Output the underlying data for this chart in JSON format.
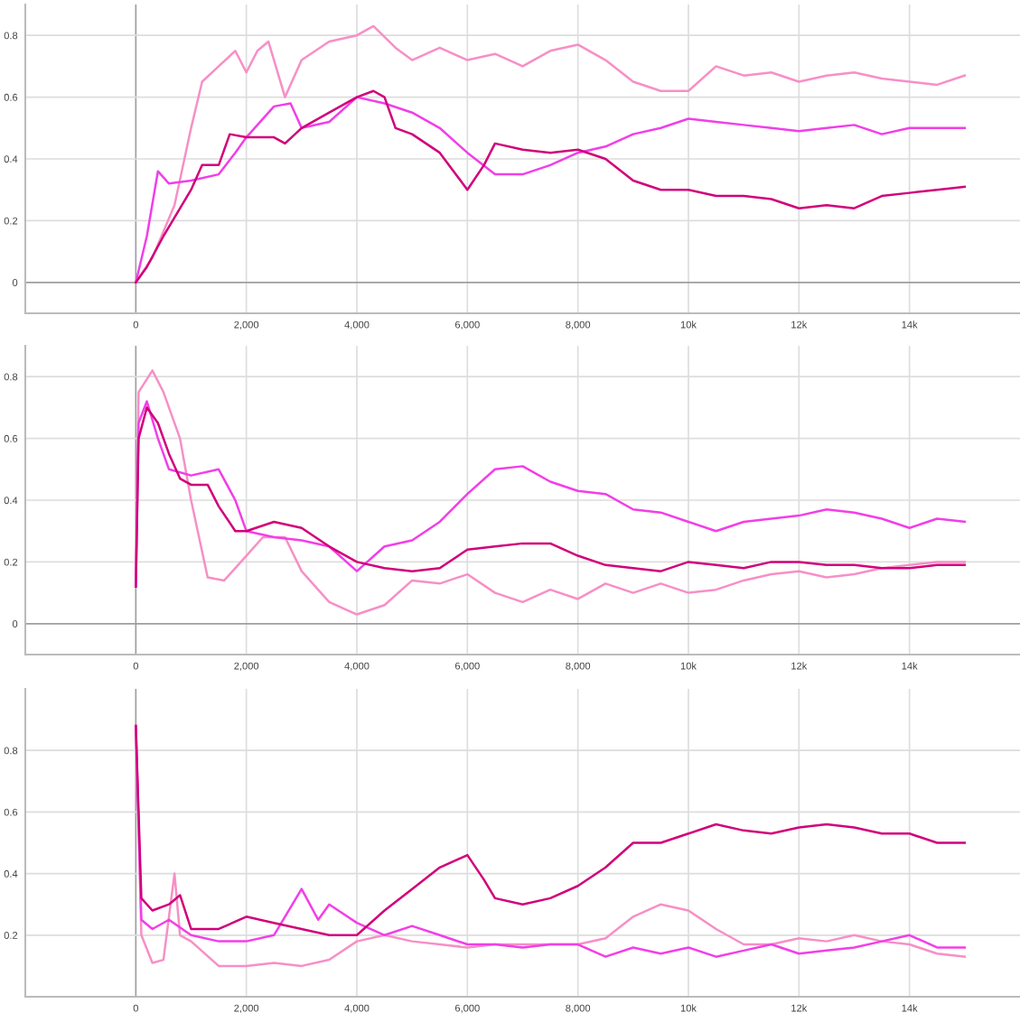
{
  "chart_data": [
    {
      "type": "line",
      "xlim": [
        -2000,
        16000
      ],
      "ylim": [
        -0.1,
        0.9
      ],
      "xticks": [
        0,
        {
          "value": 2000,
          "label": "2,000"
        },
        {
          "value": 4000,
          "label": "4,000"
        },
        {
          "value": 6000,
          "label": "6,000"
        },
        {
          "value": 8000,
          "label": "8,000"
        },
        {
          "value": 10000,
          "label": "10k"
        },
        {
          "value": 12000,
          "label": "12k"
        },
        {
          "value": 14000,
          "label": "14k"
        }
      ],
      "yticks": [
        0,
        0.2,
        0.4,
        0.6,
        0.8
      ],
      "grid": true,
      "series": [
        {
          "color": "#f78fc6",
          "x": [
            0,
            300,
            700,
            1000,
            1200,
            1500,
            1800,
            2000,
            2200,
            2400,
            2700,
            3000,
            3500,
            4000,
            4300,
            4700,
            5000,
            5500,
            6000,
            6500,
            7000,
            7500,
            8000,
            8500,
            9000,
            9500,
            10000,
            10500,
            11000,
            11500,
            12000,
            12500,
            13000,
            13500,
            14000,
            14500,
            15000
          ],
          "values": [
            0,
            0.08,
            0.25,
            0.5,
            0.65,
            0.7,
            0.75,
            0.68,
            0.75,
            0.78,
            0.6,
            0.72,
            0.78,
            0.8,
            0.83,
            0.76,
            0.72,
            0.76,
            0.72,
            0.74,
            0.7,
            0.75,
            0.77,
            0.72,
            0.65,
            0.62,
            0.62,
            0.7,
            0.67,
            0.68,
            0.65,
            0.67,
            0.68,
            0.66,
            0.65,
            0.64,
            0.67
          ]
        },
        {
          "color": "#f23ee8",
          "x": [
            0,
            200,
            400,
            600,
            1000,
            1500,
            1800,
            2000,
            2500,
            2800,
            3000,
            3500,
            4000,
            4500,
            5000,
            5500,
            6000,
            6500,
            7000,
            7500,
            8000,
            8500,
            9000,
            9500,
            10000,
            10500,
            11000,
            11500,
            12000,
            12500,
            13000,
            13500,
            14000,
            14500,
            15000
          ],
          "values": [
            0,
            0.15,
            0.36,
            0.32,
            0.33,
            0.35,
            0.42,
            0.47,
            0.57,
            0.58,
            0.5,
            0.52,
            0.6,
            0.58,
            0.55,
            0.5,
            0.42,
            0.35,
            0.35,
            0.38,
            0.42,
            0.44,
            0.48,
            0.5,
            0.53,
            0.52,
            0.51,
            0.5,
            0.49,
            0.5,
            0.51,
            0.48,
            0.5,
            0.5,
            0.5
          ]
        },
        {
          "color": "#d1007a",
          "x": [
            0,
            200,
            500,
            1000,
            1200,
            1500,
            1700,
            2000,
            2500,
            2700,
            3000,
            3500,
            4000,
            4300,
            4500,
            4700,
            5000,
            5500,
            6000,
            6300,
            6500,
            7000,
            7500,
            8000,
            8500,
            9000,
            9500,
            10000,
            10500,
            11000,
            11500,
            12000,
            12500,
            13000,
            13500,
            14000,
            14500,
            15000
          ],
          "values": [
            0,
            0.05,
            0.15,
            0.3,
            0.38,
            0.38,
            0.48,
            0.47,
            0.47,
            0.45,
            0.5,
            0.55,
            0.6,
            0.62,
            0.6,
            0.5,
            0.48,
            0.42,
            0.3,
            0.38,
            0.45,
            0.43,
            0.42,
            0.43,
            0.4,
            0.33,
            0.3,
            0.3,
            0.28,
            0.28,
            0.27,
            0.24,
            0.25,
            0.24,
            0.28,
            0.29,
            0.3,
            0.31
          ]
        }
      ]
    },
    {
      "type": "line",
      "xlim": [
        -2000,
        16000
      ],
      "ylim": [
        -0.1,
        0.9
      ],
      "xticks": [
        0,
        {
          "value": 2000,
          "label": "2,000"
        },
        {
          "value": 4000,
          "label": "4,000"
        },
        {
          "value": 6000,
          "label": "6,000"
        },
        {
          "value": 8000,
          "label": "8,000"
        },
        {
          "value": 10000,
          "label": "10k"
        },
        {
          "value": 12000,
          "label": "12k"
        },
        {
          "value": 14000,
          "label": "14k"
        }
      ],
      "yticks": [
        0,
        0.2,
        0.4,
        0.6,
        0.8
      ],
      "grid": true,
      "series": [
        {
          "color": "#f78fc6",
          "x": [
            0,
            50,
            300,
            500,
            800,
            1000,
            1300,
            1600,
            2000,
            2300,
            2700,
            3000,
            3500,
            4000,
            4500,
            5000,
            5500,
            6000,
            6500,
            7000,
            7500,
            8000,
            8500,
            9000,
            9500,
            10000,
            10500,
            11000,
            11500,
            12000,
            12500,
            13000,
            13500,
            14000,
            14500,
            15000
          ],
          "values": [
            0.12,
            0.75,
            0.82,
            0.75,
            0.6,
            0.4,
            0.15,
            0.14,
            0.22,
            0.28,
            0.28,
            0.17,
            0.07,
            0.03,
            0.06,
            0.14,
            0.13,
            0.16,
            0.1,
            0.07,
            0.11,
            0.08,
            0.13,
            0.1,
            0.13,
            0.1,
            0.11,
            0.14,
            0.16,
            0.17,
            0.15,
            0.16,
            0.18,
            0.19,
            0.2,
            0.2
          ]
        },
        {
          "color": "#f23ee8",
          "x": [
            0,
            50,
            200,
            400,
            600,
            1000,
            1500,
            1800,
            2000,
            2500,
            3000,
            3500,
            4000,
            4500,
            5000,
            5500,
            6000,
            6500,
            7000,
            7500,
            8000,
            8500,
            9000,
            9500,
            10000,
            10500,
            11000,
            11500,
            12000,
            12500,
            13000,
            13500,
            14000,
            14500,
            15000
          ],
          "values": [
            0.12,
            0.65,
            0.72,
            0.6,
            0.5,
            0.48,
            0.5,
            0.4,
            0.3,
            0.28,
            0.27,
            0.25,
            0.17,
            0.25,
            0.27,
            0.33,
            0.42,
            0.5,
            0.51,
            0.46,
            0.43,
            0.42,
            0.37,
            0.36,
            0.33,
            0.3,
            0.33,
            0.34,
            0.35,
            0.37,
            0.36,
            0.34,
            0.31,
            0.34,
            0.33
          ]
        },
        {
          "color": "#d1007a",
          "x": [
            0,
            50,
            200,
            400,
            600,
            800,
            1000,
            1300,
            1500,
            1800,
            2000,
            2500,
            3000,
            3500,
            4000,
            4500,
            5000,
            5500,
            6000,
            6500,
            7000,
            7500,
            8000,
            8500,
            9000,
            9500,
            10000,
            10500,
            11000,
            11500,
            12000,
            12500,
            13000,
            13500,
            14000,
            14500,
            15000
          ],
          "values": [
            0.12,
            0.6,
            0.7,
            0.65,
            0.55,
            0.47,
            0.45,
            0.45,
            0.38,
            0.3,
            0.3,
            0.33,
            0.31,
            0.25,
            0.2,
            0.18,
            0.17,
            0.18,
            0.24,
            0.25,
            0.26,
            0.26,
            0.22,
            0.19,
            0.18,
            0.17,
            0.2,
            0.19,
            0.18,
            0.2,
            0.2,
            0.19,
            0.19,
            0.18,
            0.18,
            0.19,
            0.19
          ]
        }
      ]
    },
    {
      "type": "line",
      "xlim": [
        -2000,
        16000
      ],
      "ylim": [
        0,
        1.0
      ],
      "xticks": [
        0,
        {
          "value": 2000,
          "label": "2,000"
        },
        {
          "value": 4000,
          "label": "4,000"
        },
        {
          "value": 6000,
          "label": "6,000"
        },
        {
          "value": 8000,
          "label": "8,000"
        },
        {
          "value": 10000,
          "label": "10k"
        },
        {
          "value": 12000,
          "label": "12k"
        },
        {
          "value": 14000,
          "label": "14k"
        }
      ],
      "yticks": [
        0.2,
        0.4,
        0.6,
        0.8
      ],
      "grid": true,
      "series": [
        {
          "color": "#f78fc6",
          "x": [
            0,
            100,
            300,
            500,
            700,
            800,
            1000,
            1500,
            2000,
            2500,
            3000,
            3500,
            4000,
            4500,
            5000,
            5500,
            6000,
            6500,
            7000,
            7500,
            8000,
            8500,
            9000,
            9500,
            10000,
            10500,
            11000,
            11500,
            12000,
            12500,
            13000,
            13500,
            14000,
            14500,
            15000
          ],
          "values": [
            0.88,
            0.2,
            0.11,
            0.12,
            0.4,
            0.2,
            0.18,
            0.1,
            0.1,
            0.11,
            0.1,
            0.12,
            0.18,
            0.2,
            0.18,
            0.17,
            0.16,
            0.17,
            0.17,
            0.17,
            0.17,
            0.19,
            0.26,
            0.3,
            0.28,
            0.22,
            0.17,
            0.17,
            0.19,
            0.18,
            0.2,
            0.18,
            0.17,
            0.14,
            0.13
          ]
        },
        {
          "color": "#f23ee8",
          "x": [
            0,
            100,
            300,
            600,
            1000,
            1500,
            2000,
            2500,
            3000,
            3300,
            3500,
            4000,
            4500,
            5000,
            5500,
            6000,
            6500,
            7000,
            7500,
            8000,
            8500,
            9000,
            9500,
            10000,
            10500,
            11000,
            11500,
            12000,
            12500,
            13000,
            13500,
            14000,
            14500,
            15000
          ],
          "values": [
            0.88,
            0.25,
            0.22,
            0.25,
            0.2,
            0.18,
            0.18,
            0.2,
            0.35,
            0.25,
            0.3,
            0.24,
            0.2,
            0.23,
            0.2,
            0.17,
            0.17,
            0.16,
            0.17,
            0.17,
            0.13,
            0.16,
            0.14,
            0.16,
            0.13,
            0.15,
            0.17,
            0.14,
            0.15,
            0.16,
            0.18,
            0.2,
            0.16,
            0.16
          ]
        },
        {
          "color": "#d1007a",
          "x": [
            0,
            100,
            300,
            600,
            800,
            1000,
            1500,
            2000,
            2500,
            3000,
            3500,
            4000,
            4500,
            5000,
            5500,
            6000,
            6300,
            6500,
            7000,
            7500,
            8000,
            8500,
            9000,
            9500,
            10000,
            10500,
            11000,
            11500,
            12000,
            12500,
            13000,
            13500,
            14000,
            14500,
            15000
          ],
          "values": [
            0.88,
            0.32,
            0.28,
            0.3,
            0.33,
            0.22,
            0.22,
            0.26,
            0.24,
            0.22,
            0.2,
            0.2,
            0.28,
            0.35,
            0.42,
            0.46,
            0.38,
            0.32,
            0.3,
            0.32,
            0.36,
            0.42,
            0.5,
            0.5,
            0.53,
            0.56,
            0.54,
            0.53,
            0.55,
            0.56,
            0.55,
            0.53,
            0.53,
            0.5,
            0.5
          ]
        }
      ]
    }
  ]
}
